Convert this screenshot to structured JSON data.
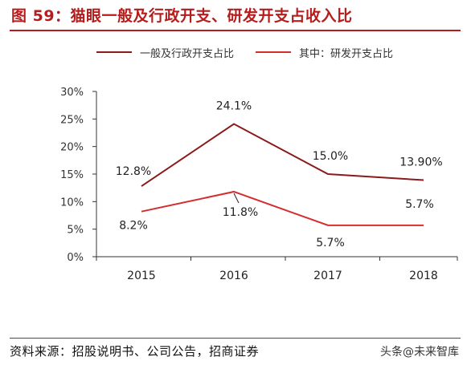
{
  "header": {
    "title": "图 59：猫眼一般及行政开支、研发开支占收入比"
  },
  "footer": {
    "source": "资料来源：招股说明书、公司公告，招商证券",
    "watermark": "头条@未来智库"
  },
  "colors": {
    "accent": "#b71c1c",
    "series1": "#8b1a1a",
    "series2": "#d32f2f",
    "axis": "#333333"
  },
  "chart_data": {
    "type": "line",
    "x": [
      "2015",
      "2016",
      "2017",
      "2018"
    ],
    "ylim": [
      0,
      30
    ],
    "yticks": [
      "0%",
      "5%",
      "10%",
      "15%",
      "20%",
      "25%",
      "30%"
    ],
    "grid": false,
    "legend_position": "top-center",
    "series": [
      {
        "name": "一般及行政开支占比",
        "values": [
          12.8,
          24.1,
          15.0,
          13.9
        ],
        "labels": [
          "12.8%",
          "24.1%",
          "15.0%",
          "13.90%"
        ]
      },
      {
        "name": "其中：研发开支占比",
        "values": [
          8.2,
          11.8,
          5.7,
          5.7
        ],
        "labels": [
          "8.2%",
          "11.8%",
          "5.7%",
          "5.7%"
        ]
      }
    ]
  }
}
